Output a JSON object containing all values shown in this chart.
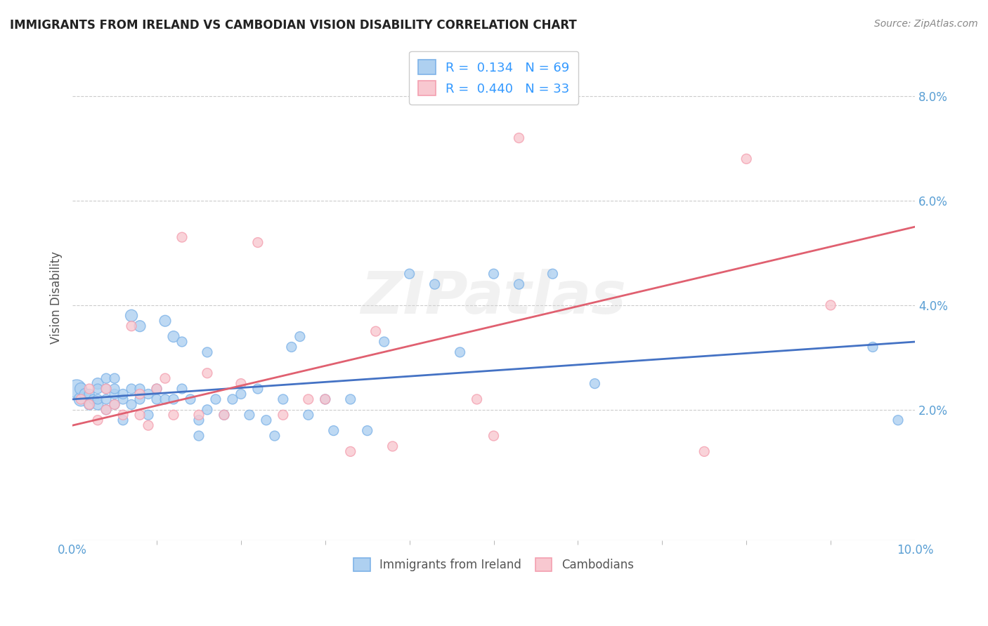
{
  "title": "IMMIGRANTS FROM IRELAND VS CAMBODIAN VISION DISABILITY CORRELATION CHART",
  "source": "Source: ZipAtlas.com",
  "ylabel": "Vision Disability",
  "xlim": [
    0.0,
    0.1
  ],
  "ylim": [
    -0.005,
    0.088
  ],
  "blue_color": "#7EB3E8",
  "blue_fill": "#AED0F0",
  "pink_color": "#F4A0B0",
  "pink_fill": "#F8C8D0",
  "blue_line_color": "#4472C4",
  "pink_line_color": "#E06070",
  "legend_R_blue": "0.134",
  "legend_N_blue": "69",
  "legend_R_pink": "0.440",
  "legend_N_pink": "33",
  "watermark": "ZIPatlas",
  "blue_scatter_x": [
    0.0005,
    0.001,
    0.001,
    0.0015,
    0.002,
    0.002,
    0.0025,
    0.003,
    0.003,
    0.003,
    0.003,
    0.004,
    0.004,
    0.004,
    0.004,
    0.005,
    0.005,
    0.005,
    0.005,
    0.006,
    0.006,
    0.006,
    0.007,
    0.007,
    0.007,
    0.008,
    0.008,
    0.008,
    0.009,
    0.009,
    0.01,
    0.01,
    0.011,
    0.011,
    0.012,
    0.012,
    0.013,
    0.013,
    0.014,
    0.015,
    0.015,
    0.016,
    0.016,
    0.017,
    0.018,
    0.019,
    0.02,
    0.021,
    0.022,
    0.023,
    0.024,
    0.025,
    0.026,
    0.027,
    0.028,
    0.03,
    0.031,
    0.033,
    0.035,
    0.037,
    0.04,
    0.043,
    0.046,
    0.05,
    0.053,
    0.057,
    0.062,
    0.095,
    0.098
  ],
  "blue_scatter_y": [
    0.024,
    0.022,
    0.024,
    0.023,
    0.021,
    0.023,
    0.022,
    0.025,
    0.021,
    0.022,
    0.024,
    0.02,
    0.022,
    0.024,
    0.026,
    0.021,
    0.023,
    0.024,
    0.026,
    0.018,
    0.022,
    0.023,
    0.021,
    0.024,
    0.038,
    0.022,
    0.024,
    0.036,
    0.019,
    0.023,
    0.022,
    0.024,
    0.022,
    0.037,
    0.022,
    0.034,
    0.024,
    0.033,
    0.022,
    0.018,
    0.015,
    0.02,
    0.031,
    0.022,
    0.019,
    0.022,
    0.023,
    0.019,
    0.024,
    0.018,
    0.015,
    0.022,
    0.032,
    0.034,
    0.019,
    0.022,
    0.016,
    0.022,
    0.016,
    0.033,
    0.046,
    0.044,
    0.031,
    0.046,
    0.044,
    0.046,
    0.025,
    0.032,
    0.018
  ],
  "blue_scatter_sizes": [
    350,
    200,
    150,
    130,
    120,
    100,
    100,
    130,
    120,
    100,
    100,
    100,
    100,
    100,
    100,
    100,
    100,
    100,
    100,
    100,
    100,
    100,
    100,
    100,
    150,
    100,
    100,
    130,
    100,
    100,
    100,
    100,
    100,
    130,
    100,
    130,
    100,
    100,
    100,
    100,
    100,
    100,
    100,
    100,
    100,
    100,
    100,
    100,
    100,
    100,
    100,
    100,
    100,
    100,
    100,
    100,
    100,
    100,
    100,
    100,
    100,
    100,
    100,
    100,
    100,
    100,
    100,
    100,
    100
  ],
  "pink_scatter_x": [
    0.001,
    0.002,
    0.002,
    0.003,
    0.004,
    0.004,
    0.005,
    0.006,
    0.007,
    0.008,
    0.008,
    0.009,
    0.01,
    0.011,
    0.012,
    0.013,
    0.015,
    0.016,
    0.018,
    0.02,
    0.022,
    0.025,
    0.028,
    0.03,
    0.033,
    0.036,
    0.038,
    0.048,
    0.05,
    0.053,
    0.075,
    0.08,
    0.09
  ],
  "pink_scatter_y": [
    0.022,
    0.021,
    0.024,
    0.018,
    0.02,
    0.024,
    0.021,
    0.019,
    0.036,
    0.019,
    0.023,
    0.017,
    0.024,
    0.026,
    0.019,
    0.053,
    0.019,
    0.027,
    0.019,
    0.025,
    0.052,
    0.019,
    0.022,
    0.022,
    0.012,
    0.035,
    0.013,
    0.022,
    0.015,
    0.072,
    0.012,
    0.068,
    0.04
  ],
  "pink_scatter_sizes": [
    100,
    100,
    100,
    100,
    100,
    100,
    100,
    100,
    100,
    100,
    100,
    100,
    100,
    100,
    100,
    100,
    100,
    100,
    100,
    100,
    100,
    100,
    100,
    100,
    100,
    100,
    100,
    100,
    100,
    100,
    100,
    100,
    100
  ],
  "blue_trend_y_start": 0.022,
  "blue_trend_y_end": 0.033,
  "pink_trend_y_start": 0.017,
  "pink_trend_y_end": 0.055,
  "ytick_vals": [
    0.02,
    0.04,
    0.06,
    0.08
  ],
  "xtick_minor_vals": [
    0.01,
    0.02,
    0.03,
    0.04,
    0.05,
    0.06,
    0.07,
    0.08,
    0.09
  ]
}
